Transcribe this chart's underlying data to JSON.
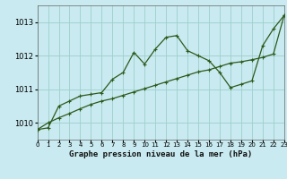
{
  "title": "Graphe pression niveau de la mer (hPa)",
  "bg_color": "#c8eaf0",
  "grid_color": "#9dcfcc",
  "line_color": "#2d5a1b",
  "yticks": [
    1010,
    1011,
    1012,
    1013
  ],
  "ylim": [
    1009.5,
    1013.5
  ],
  "xlim": [
    0,
    23
  ],
  "series1_x": [
    0,
    1,
    2,
    3,
    4,
    5,
    6,
    7,
    8,
    9,
    10,
    11,
    12,
    13,
    14,
    15,
    16,
    17,
    18,
    19,
    20,
    21,
    22,
    23
  ],
  "series1_y": [
    1009.8,
    1009.85,
    1010.5,
    1010.65,
    1010.8,
    1010.85,
    1010.9,
    1011.3,
    1011.5,
    1012.1,
    1011.75,
    1012.2,
    1012.55,
    1012.6,
    1012.15,
    1012.0,
    1011.85,
    1011.5,
    1011.05,
    1011.15,
    1011.25,
    1012.3,
    1012.8,
    1013.2
  ],
  "series2_x": [
    0,
    1,
    2,
    3,
    4,
    5,
    6,
    7,
    8,
    9,
    10,
    11,
    12,
    13,
    14,
    15,
    16,
    17,
    18,
    19,
    20,
    21,
    22,
    23
  ],
  "series2_y": [
    1009.8,
    1010.0,
    1010.15,
    1010.28,
    1010.42,
    1010.55,
    1010.65,
    1010.72,
    1010.82,
    1010.92,
    1011.02,
    1011.12,
    1011.22,
    1011.32,
    1011.42,
    1011.52,
    1011.58,
    1011.68,
    1011.78,
    1011.82,
    1011.88,
    1011.95,
    1012.05,
    1013.2
  ]
}
